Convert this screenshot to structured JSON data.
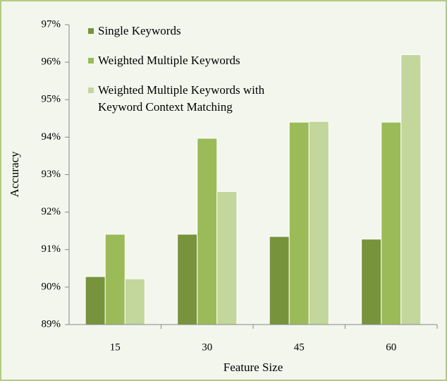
{
  "chart_data": {
    "type": "bar",
    "categories": [
      "15",
      "30",
      "45",
      "60"
    ],
    "series": [
      {
        "name": "Single Keywords",
        "color": "#77933c",
        "values": [
          90.28,
          91.41,
          91.35,
          91.28
        ]
      },
      {
        "name": "Weighted Multiple Keywords",
        "color": "#9bbb59",
        "values": [
          91.41,
          93.97,
          94.4,
          94.4
        ]
      },
      {
        "name": "Weighted Multiple Keywords with Keyword Context Matching",
        "color": "#c3d69b",
        "values": [
          90.22,
          92.55,
          94.42,
          96.2
        ]
      }
    ],
    "xlabel": "Feature Size",
    "ylabel": "Accuracy",
    "ylim": [
      89,
      97
    ],
    "yticks": [
      {
        "value": 89,
        "label": "89%"
      },
      {
        "value": 90,
        "label": "90%"
      },
      {
        "value": 91,
        "label": "91%"
      },
      {
        "value": 92,
        "label": "92%"
      },
      {
        "value": 93,
        "label": "93%"
      },
      {
        "value": 94,
        "label": "94%"
      },
      {
        "value": 95,
        "label": "95%"
      },
      {
        "value": 96,
        "label": "96%"
      },
      {
        "value": 97,
        "label": "97%"
      }
    ],
    "grid": false,
    "legend": "top-left"
  }
}
